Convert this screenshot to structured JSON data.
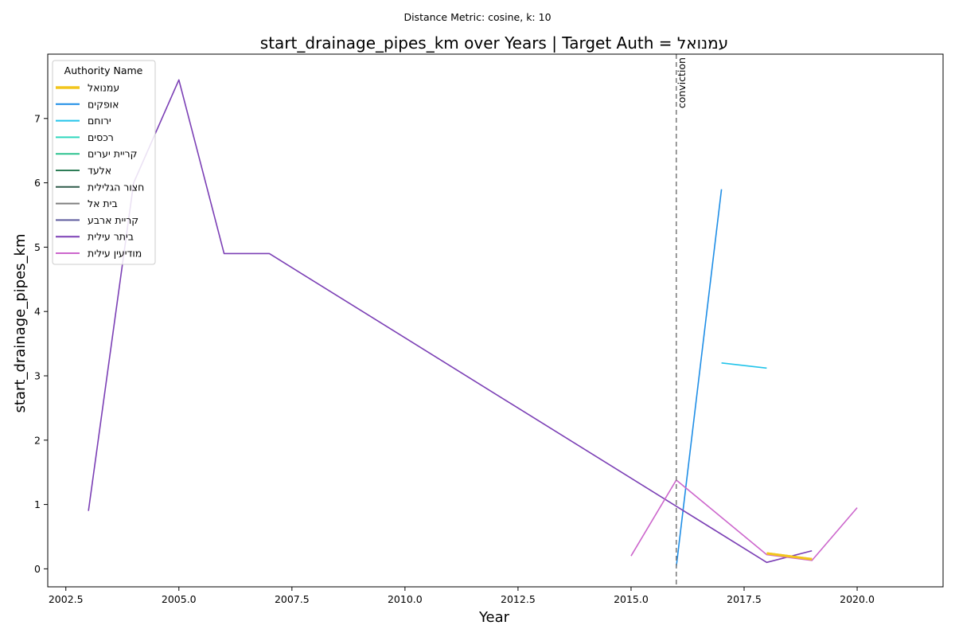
{
  "chart_data": {
    "type": "line",
    "subtitle": "Distance Metric: cosine, k: 10",
    "title": "start_drainage_pipes_km over Years | Target Auth = עמנואל",
    "xlabel": "Year",
    "ylabel": "start_drainage_pipes_km",
    "xlim": [
      2002.1,
      2021.9
    ],
    "ylim": [
      -0.28,
      8.0
    ],
    "x_ticks": [
      2002.5,
      2005.0,
      2007.5,
      2010.0,
      2012.5,
      2015.0,
      2017.5,
      2020.0
    ],
    "x_tick_labels": [
      "2002.5",
      "2005.0",
      "2007.5",
      "2010.0",
      "2012.5",
      "2015.0",
      "2017.5",
      "2020.0"
    ],
    "y_ticks": [
      0,
      1,
      2,
      3,
      4,
      5,
      6,
      7
    ],
    "y_tick_labels": [
      "0",
      "1",
      "2",
      "3",
      "4",
      "5",
      "6",
      "7"
    ],
    "grid": false,
    "legend": {
      "title": "Authority Name",
      "placement": "top-left"
    },
    "annotations": [
      {
        "type": "vline",
        "x": 2016,
        "label": "conviction",
        "color": "#808080"
      }
    ],
    "series": [
      {
        "name": "עמנואל",
        "color": "#f2c51d",
        "target": true,
        "x": [
          2018,
          2019
        ],
        "y": [
          0.24,
          0.15
        ]
      },
      {
        "name": "אופקים",
        "color": "#1f8ee6",
        "x": [
          2016,
          2017
        ],
        "y": [
          0.03,
          5.9
        ]
      },
      {
        "name": "ירוחם",
        "color": "#22c4ea",
        "x": [
          2017,
          2018
        ],
        "y": [
          3.2,
          3.12
        ]
      },
      {
        "name": "רכסים",
        "color": "#2ed8bd",
        "x": [],
        "y": []
      },
      {
        "name": "קריית יערים",
        "color": "#2dc28f",
        "x": [],
        "y": []
      },
      {
        "name": "אלעד",
        "color": "#2e7d57",
        "x": [],
        "y": []
      },
      {
        "name": "חצור הגלילית",
        "color": "#2f5b4a",
        "x": [],
        "y": []
      },
      {
        "name": "בית אל",
        "color": "#7f7f7f",
        "x": [],
        "y": []
      },
      {
        "name": "קריית ארבע",
        "color": "#5c5a9c",
        "x": [],
        "y": []
      },
      {
        "name": "ביתר עילית",
        "color": "#7b3fb5",
        "x": [
          2003,
          2004,
          2005,
          2006,
          2007,
          2018,
          2019
        ],
        "y": [
          0.9,
          6.0,
          7.6,
          4.9,
          4.9,
          0.1,
          0.28
        ]
      },
      {
        "name": "מודיעין עילית",
        "color": "#cc66cc",
        "x": [
          2015,
          2016,
          2018,
          2019,
          2020
        ],
        "y": [
          0.2,
          1.38,
          0.22,
          0.13,
          0.95
        ]
      }
    ]
  }
}
